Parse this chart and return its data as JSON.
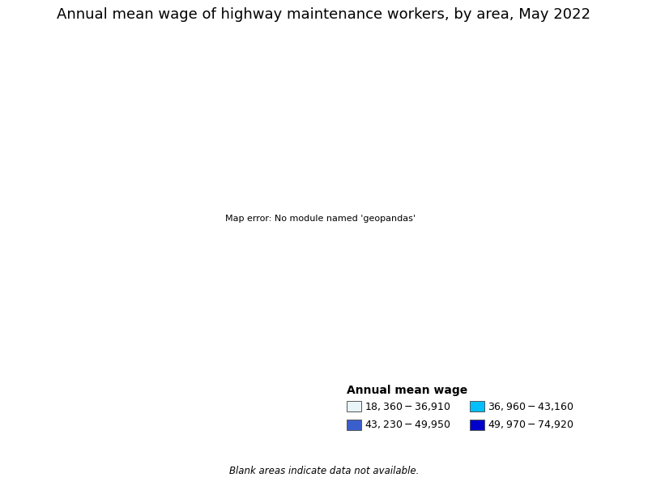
{
  "title": "Annual mean wage of highway maintenance workers, by area, May 2022",
  "legend_title": "Annual mean wage",
  "legend_items": [
    {
      "label": "$18,360 - $36,910",
      "color": "#e8f4f8"
    },
    {
      "label": "$36,960 - $43,160",
      "color": "#00bfff"
    },
    {
      "label": "$43,230 - $49,950",
      "color": "#3a5fcd"
    },
    {
      "label": "$49,970 - $74,920",
      "color": "#0000cc"
    }
  ],
  "blank_note": "Blank areas indicate data not available.",
  "background_color": "#ffffff",
  "title_fontsize": 13,
  "legend_title_fontsize": 10,
  "legend_fontsize": 9,
  "no_data_color": "#ffffff",
  "border_color": "#888888",
  "state_border_color": "#333333"
}
